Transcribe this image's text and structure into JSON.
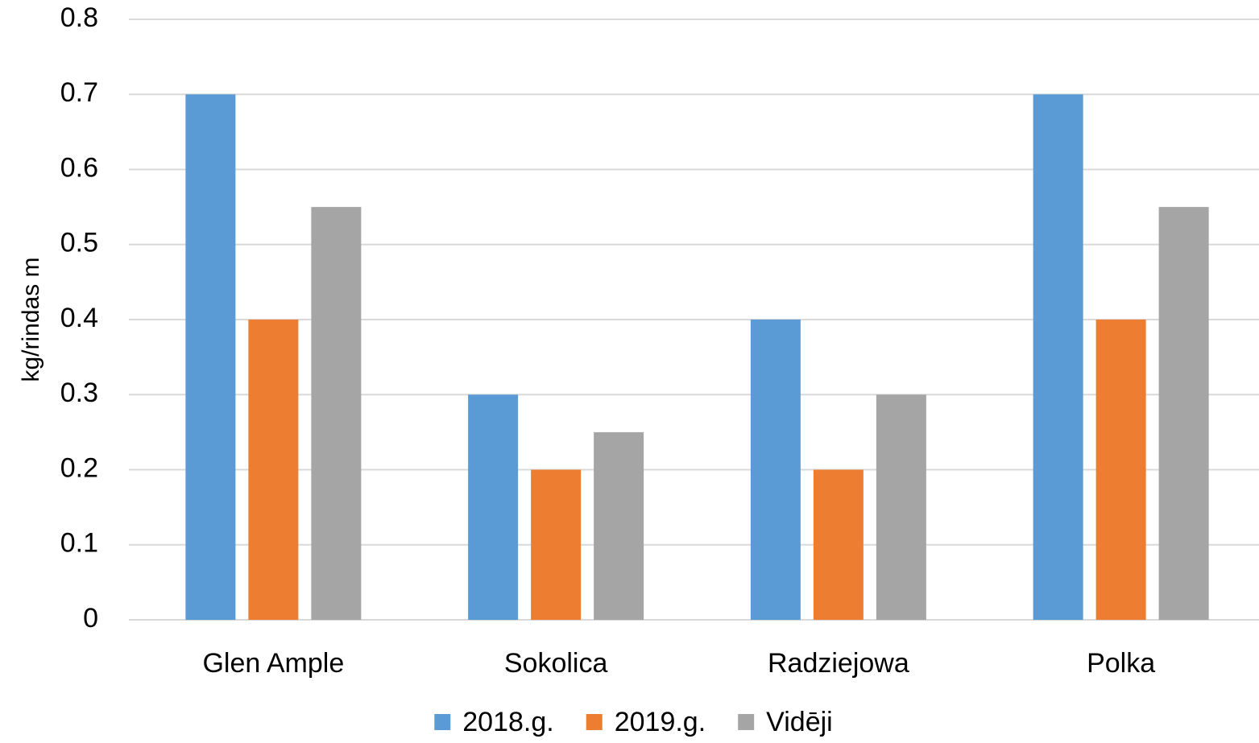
{
  "chart_data": {
    "type": "bar",
    "categories": [
      "Glen Ample",
      "Sokolica",
      "Radziejowa",
      "Polka"
    ],
    "series": [
      {
        "name": "2018.g.",
        "color": "#5b9bd5",
        "values": [
          0.7,
          0.3,
          0.4,
          0.7
        ]
      },
      {
        "name": "2019.g.",
        "color": "#ed7d31",
        "values": [
          0.4,
          0.2,
          0.2,
          0.4
        ]
      },
      {
        "name": "Vidēji",
        "color": "#a5a5a5",
        "values": [
          0.55,
          0.25,
          0.3,
          0.55
        ]
      }
    ],
    "y_label": "kg/rindas m",
    "ylim": [
      0,
      0.8
    ],
    "yticks": [
      0,
      0.1,
      0.2,
      0.3,
      0.4,
      0.5,
      0.6,
      0.7,
      0.8
    ],
    "grid": true,
    "legend": "bottom"
  }
}
